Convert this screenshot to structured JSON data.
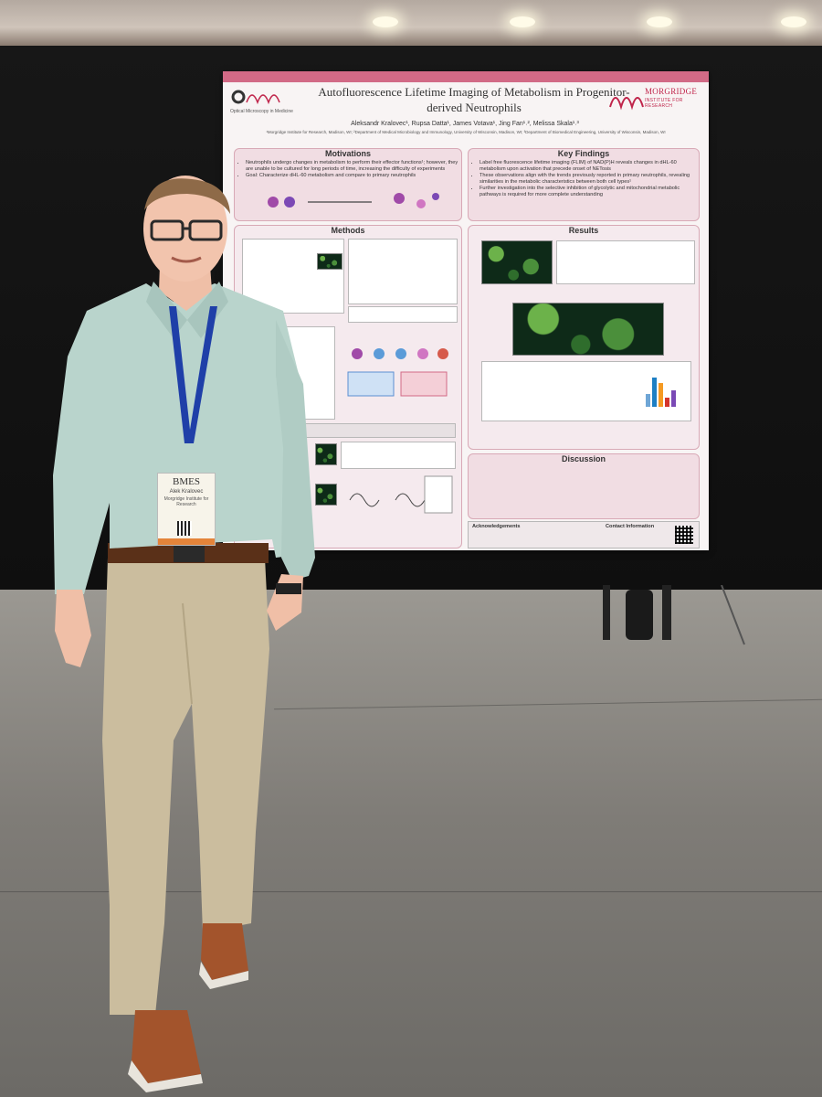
{
  "poster": {
    "title": "Autofluorescence Lifetime Imaging of Metabolism in Progenitor-derived Neutrophils",
    "left_logo_text": "Optical Microscopy in Medicine",
    "right_logo_name": "MORGRIDGE",
    "right_logo_sub": "INSTITUTE FOR RESEARCH",
    "authors": "Aleksandr Kralovec¹, Rupsa Datta¹, James Votava¹, Jing Fan¹˒², Melissa Skala¹˒³",
    "affiliations": "¹Morgridge Institute for Research, Madison, WI; ²Department of Medical Microbiology and Immunology, University of Wisconsin, Madison, WI; ³Department of Biomedical Engineering, University of Wisconsin, Madison, WI",
    "sections": {
      "motivations": {
        "heading": "Motivations",
        "bullets": [
          "Neutrophils undergo changes in metabolism to perform their effector functions¹; however, they are unable to be cultured for long periods of time, increasing the difficulty of experiments",
          "Goal: Characterize dHL-60 metabolism and compare to primary neutrophils"
        ]
      },
      "key_findings": {
        "heading": "Key Findings",
        "bullets": [
          "Label free fluorescence lifetime imaging (FLIM) of NAD(P)H reveals changes in dHL-60 metabolism upon activation that precede onset of NETosis",
          "These observations align with the trends previously reported in primary neutrophils, revealing similarities in the metabolic characteristics between both cell types¹",
          "Further investigation into the selective inhibition of glycolytic and mitochondrial metabolic pathways is required for more complete understanding"
        ]
      },
      "methods": {
        "heading": "Methods"
      },
      "results": {
        "heading": "Results"
      },
      "discussion": {
        "heading": "Discussion"
      },
      "acknowledgements": {
        "heading": "Acknowledgements"
      },
      "contact": {
        "heading": "Contact Information"
      }
    }
  },
  "badge": {
    "org": "BMES",
    "name": "Alek Kralovec",
    "affiliation": "Morgridge Institute for Research"
  },
  "colors": {
    "poster_accent": "#d26a86",
    "panel_fill": "#f1dde3",
    "morgridge_red": "#c0254b",
    "shirt": "#b9d4cc",
    "pants": "#cfc2a3",
    "lanyard": "#1f3fa8"
  }
}
